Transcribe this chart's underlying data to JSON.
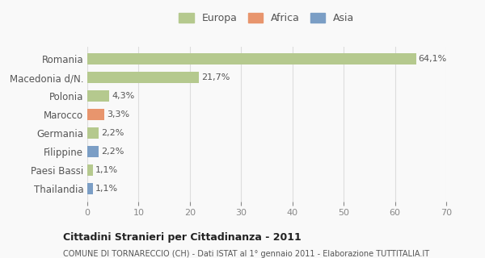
{
  "categories": [
    "Romania",
    "Macedonia d/N.",
    "Polonia",
    "Marocco",
    "Germania",
    "Filippine",
    "Paesi Bassi",
    "Thailandia"
  ],
  "values": [
    64.1,
    21.7,
    4.3,
    3.3,
    2.2,
    2.2,
    1.1,
    1.1
  ],
  "labels": [
    "64,1%",
    "21,7%",
    "4,3%",
    "3,3%",
    "2,2%",
    "2,2%",
    "1,1%",
    "1,1%"
  ],
  "continent": [
    "Europa",
    "Europa",
    "Europa",
    "Africa",
    "Europa",
    "Asia",
    "Europa",
    "Asia"
  ],
  "colors": {
    "Europa": "#b5c98e",
    "Africa": "#e8956d",
    "Asia": "#7b9ec5"
  },
  "legend": {
    "Europa": "#b5c98e",
    "Africa": "#e8956d",
    "Asia": "#7b9ec5"
  },
  "xlim": [
    0,
    70
  ],
  "xticks": [
    0,
    10,
    20,
    30,
    40,
    50,
    60,
    70
  ],
  "title": "Cittadini Stranieri per Cittadinanza - 2011",
  "subtitle": "COMUNE DI TORNARECCIO (CH) - Dati ISTAT al 1° gennaio 2011 - Elaborazione TUTTITALIA.IT",
  "bg_color": "#f9f9f9",
  "grid_color": "#dddddd"
}
